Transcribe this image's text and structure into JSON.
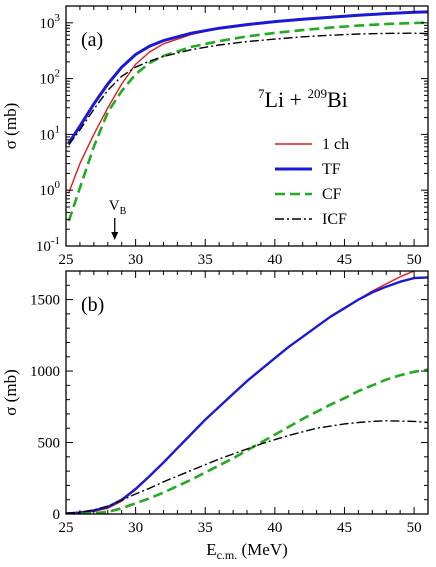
{
  "chart_data": [
    {
      "type": "line",
      "panel_label": "(a)",
      "annotation": {
        "reaction": [
          "7",
          "Li + ",
          "209",
          "Bi"
        ]
      },
      "ylabel": "σ (mb)",
      "xlabel": "",
      "xlim": [
        25,
        51
      ],
      "ylim": [
        0.1,
        2000
      ],
      "yscale": "log",
      "x_ticks": [
        25,
        30,
        35,
        40,
        45,
        50
      ],
      "y_ticks": [
        {
          "value": 0.1,
          "base": "10",
          "exp": "-1"
        },
        {
          "value": 1,
          "base": "10",
          "exp": "0"
        },
        {
          "value": 10,
          "base": "10",
          "exp": "1"
        },
        {
          "value": 100,
          "base": "10",
          "exp": "2"
        },
        {
          "value": 1000,
          "base": "10",
          "exp": "3"
        }
      ],
      "marker": {
        "label": "V",
        "sub": "B",
        "x": 28.5
      },
      "legend": {
        "placement": "right-middle"
      },
      "series": [
        {
          "name": "1 ch",
          "color": "#dd1c1c",
          "style": "solid",
          "width": 1.4,
          "x": [
            25.2,
            26,
            27,
            28,
            29,
            30,
            31,
            32,
            34,
            36,
            38,
            40,
            42,
            44,
            46,
            48,
            50,
            51
          ],
          "y": [
            0.9,
            3,
            10,
            30,
            80,
            180,
            300,
            420,
            620,
            790,
            930,
            1050,
            1170,
            1280,
            1380,
            1480,
            1570,
            1620
          ]
        },
        {
          "name": "TF",
          "color": "#1a1ad6",
          "style": "solid",
          "width": 3,
          "x": [
            25.2,
            26,
            27,
            28,
            29,
            30,
            31,
            32,
            34,
            36,
            38,
            40,
            42,
            44,
            46,
            48,
            50,
            51
          ],
          "y": [
            7,
            14,
            35,
            80,
            160,
            270,
            380,
            480,
            650,
            800,
            930,
            1050,
            1160,
            1260,
            1360,
            1460,
            1540,
            1570
          ]
        },
        {
          "name": "CF",
          "color": "#22aa22",
          "style": "dashed",
          "width": 2.6,
          "x": [
            25.2,
            26,
            27,
            28,
            29,
            30,
            31,
            32,
            34,
            36,
            38,
            40,
            42,
            44,
            46,
            48,
            50,
            51
          ],
          "y": [
            0.28,
            1.1,
            6,
            25,
            60,
            120,
            190,
            255,
            370,
            470,
            570,
            660,
            740,
            820,
            890,
            950,
            990,
            1000
          ]
        },
        {
          "name": "ICF",
          "color": "#000000",
          "style": "dashdot",
          "width": 1.4,
          "x": [
            25.2,
            26,
            27,
            28,
            29,
            30,
            31,
            32,
            34,
            36,
            38,
            40,
            42,
            44,
            46,
            48,
            50,
            51
          ],
          "y": [
            6.5,
            12,
            28,
            62,
            110,
            160,
            205,
            250,
            330,
            400,
            460,
            510,
            560,
            600,
            630,
            645,
            650,
            640
          ]
        }
      ]
    },
    {
      "type": "line",
      "panel_label": "(b)",
      "ylabel": "σ (mb)",
      "xlabel": "E",
      "xlabel_sub": "c.m.",
      "xlabel_unit": " (MeV)",
      "xlim": [
        25,
        51
      ],
      "ylim": [
        0,
        1700
      ],
      "yscale": "linear",
      "x_ticks": [
        25,
        30,
        35,
        40,
        45,
        50
      ],
      "y_ticks": [
        0,
        500,
        1000,
        1500
      ],
      "series": [
        {
          "name": "1 ch",
          "color": "#dd1c1c",
          "style": "solid",
          "width": 1.4,
          "x": [
            25,
            26,
            27,
            28,
            29,
            30,
            31,
            32,
            33,
            34,
            35,
            36,
            37,
            38,
            39,
            40,
            41,
            42,
            43,
            44,
            45,
            46,
            47,
            48,
            49,
            50,
            50.6
          ],
          "y": [
            3,
            8,
            18,
            40,
            90,
            170,
            260,
            360,
            460,
            560,
            660,
            750,
            840,
            930,
            1010,
            1090,
            1170,
            1240,
            1310,
            1380,
            1440,
            1500,
            1560,
            1610,
            1660,
            1700,
            1720
          ]
        },
        {
          "name": "TF",
          "color": "#1a1ad6",
          "style": "solid",
          "width": 2.4,
          "x": [
            25,
            26,
            27,
            28,
            29,
            30,
            31,
            32,
            33,
            34,
            35,
            36,
            37,
            38,
            39,
            40,
            41,
            42,
            43,
            44,
            45,
            46,
            47,
            48,
            49,
            50,
            51
          ],
          "y": [
            4,
            10,
            25,
            50,
            100,
            175,
            265,
            360,
            460,
            560,
            660,
            750,
            840,
            930,
            1010,
            1090,
            1170,
            1240,
            1310,
            1380,
            1440,
            1500,
            1550,
            1590,
            1625,
            1650,
            1655
          ]
        },
        {
          "name": "CF",
          "color": "#22aa22",
          "style": "dashed",
          "width": 2.6,
          "x": [
            25,
            26,
            27,
            28,
            29,
            30,
            31,
            32,
            33,
            34,
            35,
            36,
            37,
            38,
            39,
            40,
            41,
            42,
            43,
            44,
            45,
            46,
            47,
            48,
            49,
            50,
            51
          ],
          "y": [
            0,
            1,
            5,
            15,
            40,
            75,
            110,
            150,
            195,
            240,
            290,
            340,
            390,
            445,
            500,
            555,
            610,
            665,
            715,
            765,
            810,
            860,
            900,
            940,
            970,
            995,
            1010
          ]
        },
        {
          "name": "ICF",
          "color": "#000000",
          "style": "dashdot",
          "width": 1.4,
          "x": [
            25,
            26,
            27,
            28,
            29,
            30,
            31,
            32,
            33,
            34,
            35,
            36,
            37,
            38,
            39,
            40,
            41,
            42,
            43,
            44,
            45,
            46,
            47,
            48,
            49,
            50,
            51
          ],
          "y": [
            5,
            12,
            28,
            55,
            95,
            140,
            180,
            225,
            265,
            305,
            345,
            385,
            420,
            455,
            490,
            520,
            550,
            575,
            600,
            615,
            630,
            640,
            648,
            652,
            650,
            648,
            640
          ]
        }
      ]
    }
  ]
}
